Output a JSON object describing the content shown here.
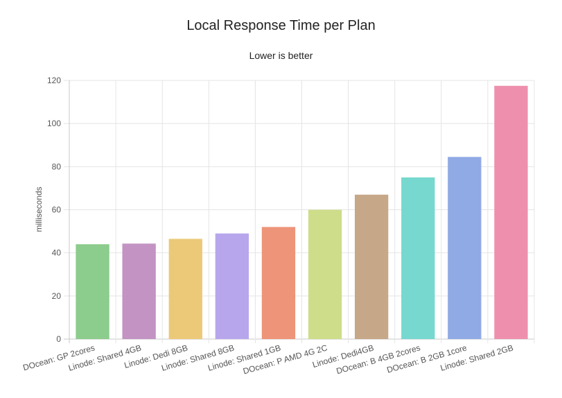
{
  "chart_data": {
    "type": "bar",
    "title": "Local Response Time per Plan",
    "subtitle": "Lower is better",
    "xlabel": "",
    "ylabel": "milliseconds",
    "ylim": [
      0,
      120
    ],
    "yticks": [
      0,
      20,
      40,
      60,
      80,
      100,
      120
    ],
    "grid": true,
    "legend": "none",
    "categories": [
      "DOcean: GP 2cores",
      "Linode: Shared 4GB",
      "Linode: Dedi 8GB",
      "Linode: Shared 8GB",
      "Linode: Shared 1GB",
      "DOcean: P AMD 4G 2C",
      "Linode: Dedi4GB",
      "DOcean: B 4GB 2cores",
      "DOcean: B 2GB 1core",
      "Linode: Shared 2GB"
    ],
    "values": [
      44,
      44.3,
      46.5,
      49,
      52,
      60,
      67,
      75,
      84.5,
      117.5
    ],
    "colors": [
      "#8ccc8c",
      "#c293c3",
      "#ecc978",
      "#b7a6ec",
      "#ed9479",
      "#cddd8a",
      "#c6a788",
      "#76d8ce",
      "#90aae6",
      "#ee8fae"
    ]
  }
}
